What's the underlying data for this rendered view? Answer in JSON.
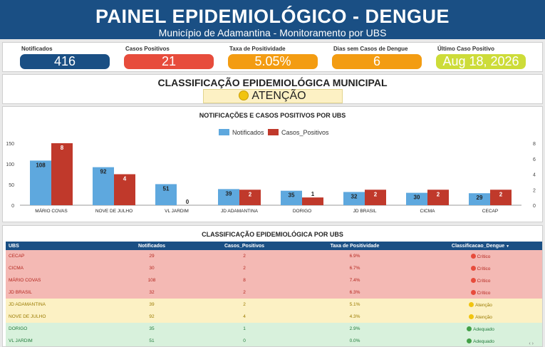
{
  "header": {
    "title": "PAINEL EPIDEMIOLÓGICO - DENGUE",
    "subtitle": "Município de Adamantina - Monitoramento por UBS"
  },
  "kpis": [
    {
      "label": "Notificados",
      "value": "416",
      "color": "#1a4f84"
    },
    {
      "label": "Casos Positivos",
      "value": "21",
      "color": "#e74c3c"
    },
    {
      "label": "Taxa de Positividade",
      "value": "5.05%",
      "color": "#f39c12"
    },
    {
      "label": "Dias sem Casos de Dengue",
      "value": "6",
      "color": "#f39c12"
    },
    {
      "label": "Último Caso Positivo",
      "value": "Aug 18, 2026",
      "color": "#cddc39"
    }
  ],
  "classification": {
    "title": "CLASSIFICAÇÃO EPIDEMIOLÓGICA MUNICIPAL",
    "status": "ATENÇÃO",
    "status_icon": "yellow-circle-icon"
  },
  "chart_data": {
    "type": "bar",
    "title": "NOTIFICAÇÕES E CASOS POSITIVOS POR UBS",
    "categories": [
      "MÁRIO COVAS",
      "NOVE DE JULHO",
      "VL JARDIM",
      "JD ADAMANTINA",
      "DORIGO",
      "JD BRASIL",
      "CICMA",
      "CECAP"
    ],
    "series": [
      {
        "name": "Notificados",
        "values": [
          108,
          92,
          51,
          39,
          35,
          32,
          30,
          29
        ],
        "color": "#5ea8de",
        "axis": "left"
      },
      {
        "name": "Casos_Positivos",
        "values": [
          8,
          4,
          0,
          2,
          1,
          2,
          2,
          2
        ],
        "color": "#c0392b",
        "axis": "right"
      }
    ],
    "y_left": {
      "range": [
        0,
        150
      ],
      "ticks": [
        "0",
        "50",
        "100",
        "150"
      ]
    },
    "y_right": {
      "range": [
        0,
        8
      ],
      "ticks": [
        "0",
        "2",
        "4",
        "6",
        "8"
      ]
    },
    "legend": "top-center",
    "grid": false
  },
  "table": {
    "title": "CLASSIFICAÇÃO EPIDEMIOLÓGICA POR UBS",
    "columns": [
      "UBS",
      "Notificados",
      "Casos_Positivos",
      "Taxa de Positividade",
      "Classificacao_Dengue"
    ],
    "sort_indicator": "▼",
    "rows": [
      {
        "ubs": "CECAP",
        "notificados": "29",
        "positivos": "2",
        "taxa": "6.9%",
        "classe": "Crítico",
        "level": "critico"
      },
      {
        "ubs": "CICMA",
        "notificados": "30",
        "positivos": "2",
        "taxa": "6.7%",
        "classe": "Crítico",
        "level": "critico"
      },
      {
        "ubs": "MÁRIO COVAS",
        "notificados": "108",
        "positivos": "8",
        "taxa": "7.4%",
        "classe": "Crítico",
        "level": "critico"
      },
      {
        "ubs": "JD BRASIL",
        "notificados": "32",
        "positivos": "2",
        "taxa": "6.3%",
        "classe": "Crítico",
        "level": "critico"
      },
      {
        "ubs": "JD ADAMANTINA",
        "notificados": "39",
        "positivos": "2",
        "taxa": "5.1%",
        "classe": "Atenção",
        "level": "atencao"
      },
      {
        "ubs": "NOVE DE JULHO",
        "notificados": "92",
        "positivos": "4",
        "taxa": "4.3%",
        "classe": "Atenção",
        "level": "atencao"
      },
      {
        "ubs": "DORIGO",
        "notificados": "35",
        "positivos": "1",
        "taxa": "2.9%",
        "classe": "Adequado",
        "level": "adequado"
      },
      {
        "ubs": "VL JARDIM",
        "notificados": "51",
        "positivos": "0",
        "taxa": "0.0%",
        "classe": "Adequado",
        "level": "adequado"
      }
    ]
  }
}
